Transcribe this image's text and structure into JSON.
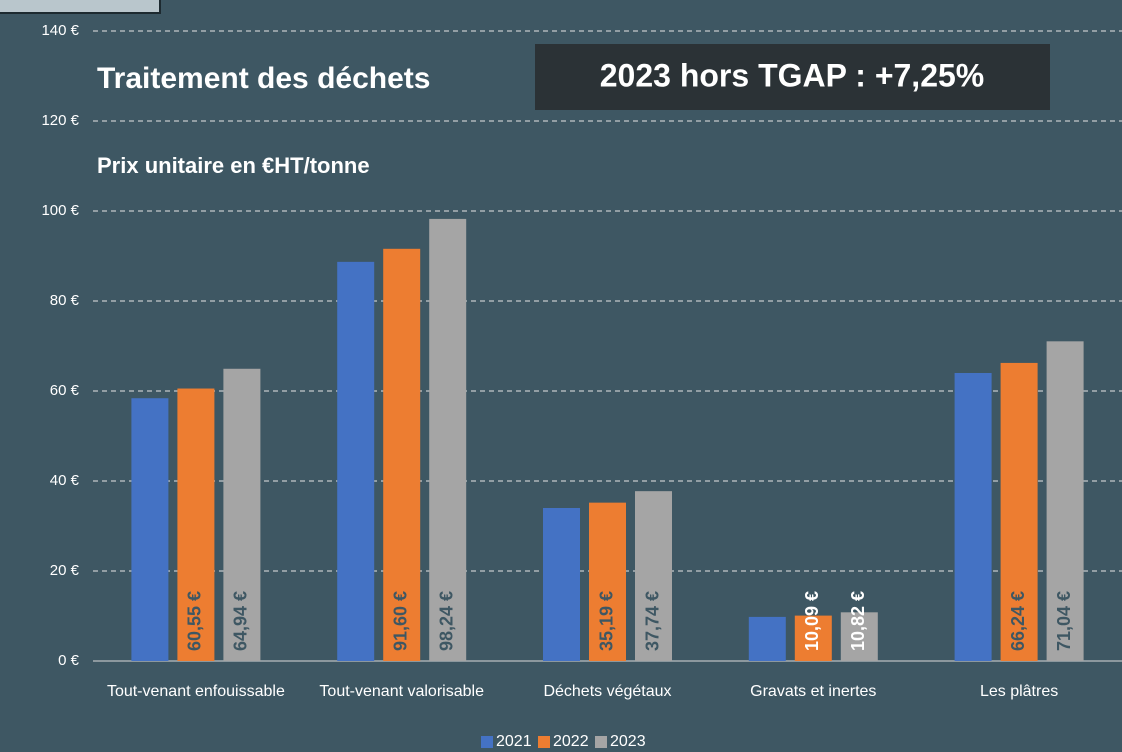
{
  "chart_data": {
    "type": "bar",
    "title": "Traitement des déchets",
    "annotation": "2023 hors TGAP : +7,25%",
    "subtitle": "Prix unitaire en €HT/tonne",
    "categories": [
      "Tout-venant enfouissable",
      "Tout-venant valorisable",
      "Déchets végétaux",
      "Gravats et inertes",
      "Les plâtres"
    ],
    "series": [
      {
        "name": "2021",
        "color": "#4472c4",
        "values": [
          58.4,
          88.7,
          34,
          9.8,
          64
        ]
      },
      {
        "name": "2022",
        "color": "#ed7d31",
        "values": [
          60.55,
          91.6,
          35.19,
          10.09,
          66.24
        ],
        "value_labels": [
          "60,55 €",
          "91,60 €",
          "35,19 €",
          "10,09 €",
          "66,24 €"
        ]
      },
      {
        "name": "2023",
        "color": "#a5a5a5",
        "values": [
          64.94,
          98.24,
          37.74,
          10.82,
          71.04
        ],
        "value_labels": [
          "64,94 €",
          "98,24 €",
          "37,74 €",
          "10,82 €",
          "71,04 €"
        ]
      }
    ],
    "ylim": [
      0,
      140
    ],
    "yticks": [
      {
        "value": 0,
        "label": "0 €"
      },
      {
        "value": 20,
        "label": "20 €"
      },
      {
        "value": 40,
        "label": "40 €"
      },
      {
        "value": 60,
        "label": "60 €"
      },
      {
        "value": 80,
        "label": "80 €"
      },
      {
        "value": 100,
        "label": "100 €"
      },
      {
        "value": 120,
        "label": "120 €"
      },
      {
        "value": 140,
        "label": "140 €"
      }
    ],
    "grid": true,
    "legend": "bottom"
  }
}
